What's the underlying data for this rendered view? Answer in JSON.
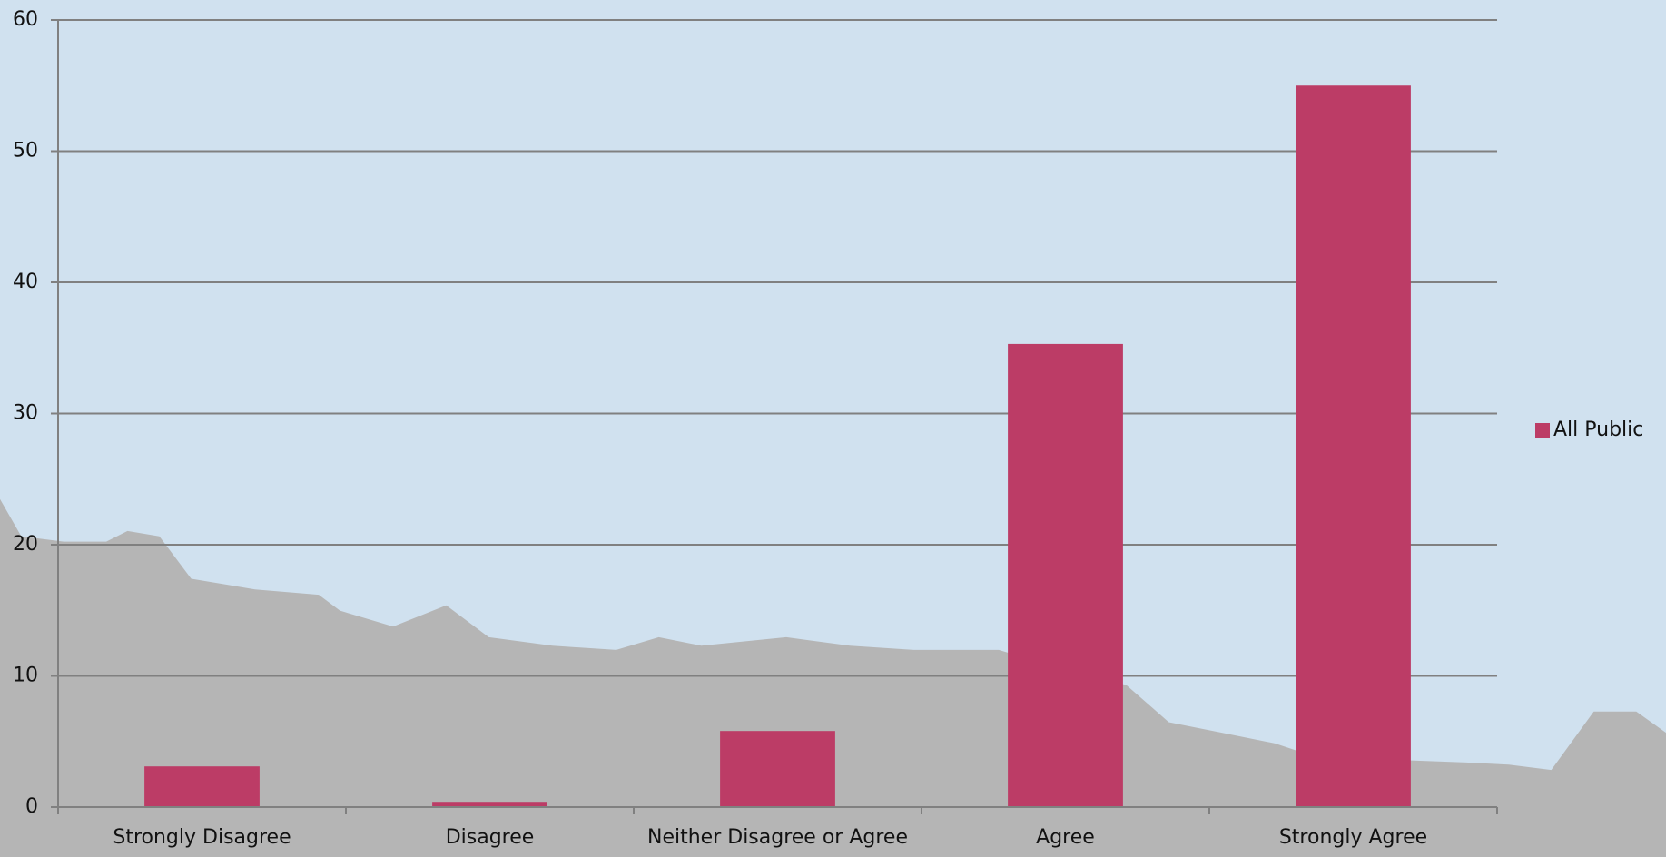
{
  "chart_data": {
    "type": "bar",
    "categories": [
      "Strongly Disagree",
      "Disagree",
      "Neither Disagree or Agree",
      "Agree",
      "Strongly Agree"
    ],
    "series": [
      {
        "name": "All Public",
        "color": "#bc3c66",
        "values": [
          3.1,
          0.4,
          5.8,
          35.3,
          55
        ]
      }
    ],
    "ylim": [
      0,
      60
    ],
    "yticks": [
      0,
      10,
      20,
      30,
      40,
      50,
      60
    ],
    "grid": true,
    "legend": "right"
  }
}
